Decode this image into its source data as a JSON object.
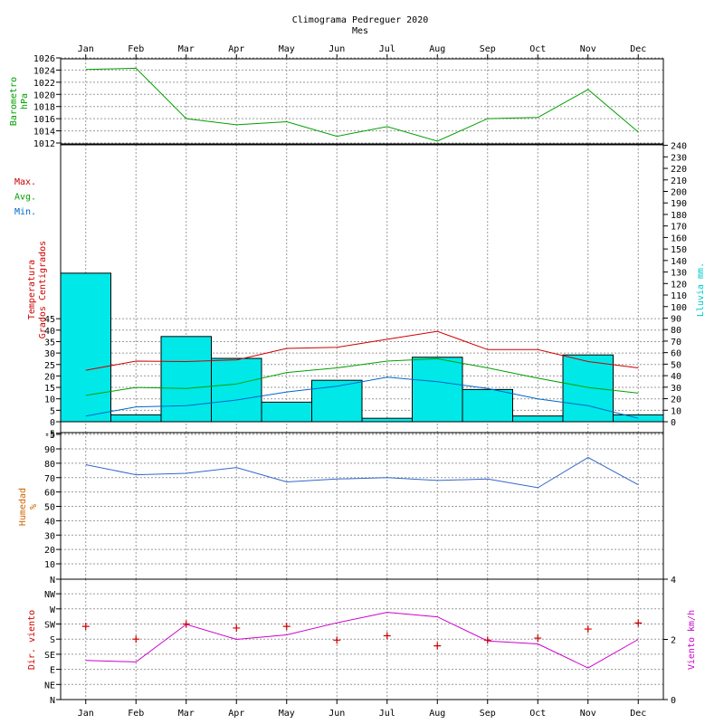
{
  "title": "Climograma Pedreguer 2020",
  "subtitle": "Mes",
  "chart_data": {
    "type": "line",
    "categories": [
      "Jan",
      "Feb",
      "Mar",
      "Apr",
      "May",
      "Jun",
      "Jul",
      "Aug",
      "Sep",
      "Oct",
      "Nov",
      "Dec"
    ],
    "panels": {
      "barometer": {
        "ylabel": [
          "Barometro",
          "hPa"
        ],
        "ylim": [
          1012,
          1026
        ],
        "ticks": [
          1012,
          1014,
          1016,
          1018,
          1020,
          1022,
          1024,
          1026
        ],
        "color": "#00a000",
        "values": [
          1024.1,
          1024.3,
          1016.0,
          1015.0,
          1015.5,
          1013.1,
          1014.7,
          1012.3,
          1016.0,
          1016.2,
          1020.8,
          1013.8
        ]
      },
      "temperature": {
        "ylabel": [
          "Temperatura",
          "Grados Centigrados"
        ],
        "y2label": "Lluvia mm.",
        "ylim": [
          -5,
          45
        ],
        "ticks": [
          -5,
          0,
          5,
          10,
          15,
          20,
          25,
          30,
          35,
          40,
          45
        ],
        "y2lim": [
          0,
          240
        ],
        "y2ticks": [
          0,
          10,
          20,
          30,
          40,
          50,
          60,
          70,
          80,
          90,
          100,
          110,
          120,
          130,
          140,
          150,
          160,
          170,
          180,
          190,
          200,
          210,
          220,
          230,
          240
        ],
        "legend": [
          {
            "name": "Max.",
            "color": "#cc0000"
          },
          {
            "name": "Avg.",
            "color": "#00a000"
          },
          {
            "name": "Min.",
            "color": "#0066cc"
          }
        ],
        "series": [
          {
            "name": "Max.",
            "values": [
              22.5,
              26.5,
              26.3,
              27.0,
              32.0,
              32.5,
              36.0,
              39.5,
              31.5,
              31.5,
              26.3,
              23.5
            ]
          },
          {
            "name": "Avg.",
            "values": [
              11.5,
              15.0,
              14.5,
              16.5,
              21.5,
              23.5,
              26.5,
              27.5,
              23.5,
              19.0,
              15.0,
              12.5
            ]
          },
          {
            "name": "Min.",
            "values": [
              2.5,
              6.5,
              7.0,
              9.5,
              13.0,
              15.5,
              19.5,
              17.5,
              14.5,
              10.0,
              7.0,
              1.5
            ]
          }
        ],
        "rain": {
          "name": "Lluvia mm.",
          "color": "#00e8e8",
          "values": [
            129,
            6,
            74,
            55,
            17,
            36,
            3,
            56,
            28,
            5,
            58,
            6
          ]
        }
      },
      "humidity": {
        "ylabel": [
          "Humedad",
          "%"
        ],
        "ylim": [
          0,
          95
        ],
        "ticks": [
          10,
          20,
          30,
          40,
          50,
          60,
          70,
          80,
          90
        ],
        "top_tick_label": "-5",
        "bottom_tick_label": "N",
        "color": "#3366cc",
        "values": [
          79,
          72,
          73,
          77,
          67,
          69,
          70,
          68,
          69,
          63,
          84,
          65
        ]
      },
      "wind": {
        "ylabel": "Dir. viento",
        "y2label": "Viento km/h",
        "dir_labels": [
          "N",
          "NE",
          "E",
          "SE",
          "S",
          "SW",
          "W",
          "NW"
        ],
        "y2lim": [
          0,
          4
        ],
        "y2ticks": [
          0,
          2,
          4
        ],
        "dir_color": "#cc0000",
        "speed_color": "#cc00cc",
        "direction_degrees": [
          218,
          180,
          225,
          213,
          218,
          177,
          190,
          160,
          177,
          183,
          210,
          228
        ],
        "speed_kmh": [
          1.3,
          1.25,
          2.5,
          2.0,
          2.15,
          2.55,
          2.9,
          2.75,
          1.95,
          1.85,
          1.05,
          2.0
        ]
      }
    }
  }
}
